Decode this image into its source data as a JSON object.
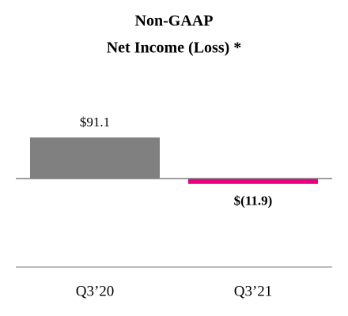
{
  "chart_data": {
    "type": "bar",
    "title": [
      "Non-GAAP",
      "Net Income (Loss) *"
    ],
    "categories": [
      "Q3’20",
      "Q3’21"
    ],
    "values": [
      91.1,
      -11.9
    ],
    "value_labels": [
      "$91.1",
      "$(11.9)"
    ],
    "value_label_bold": [
      false,
      true
    ],
    "colors": [
      "#808080",
      "#e8007f"
    ]
  }
}
